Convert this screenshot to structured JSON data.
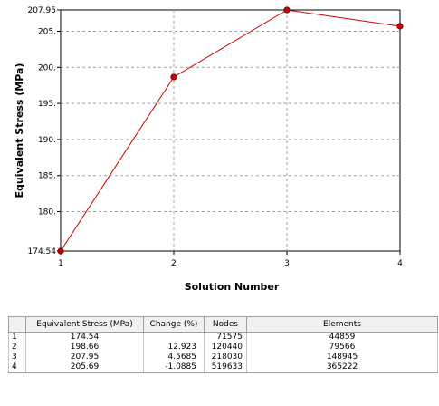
{
  "chart_data": {
    "type": "line",
    "xlabel": "Solution Number",
    "ylabel": "Equivalent Stress  (MPa)",
    "x": [
      1,
      2,
      3,
      4
    ],
    "series": [
      {
        "values": [
          174.54,
          198.66,
          207.95,
          205.69
        ],
        "color": "#cc0000"
      }
    ],
    "xlim": [
      1,
      4
    ],
    "ylim": [
      174.54,
      207.95
    ],
    "x_ticks": [
      "1",
      "2",
      "3",
      "4"
    ],
    "y_ticks": [
      {
        "value": 174.54,
        "label": "174.54"
      },
      {
        "value": 180,
        "label": "180."
      },
      {
        "value": 185,
        "label": "185."
      },
      {
        "value": 190,
        "label": "190."
      },
      {
        "value": 195,
        "label": "195."
      },
      {
        "value": 200,
        "label": "200."
      },
      {
        "value": 205,
        "label": "205."
      },
      {
        "value": 207.95,
        "label": "207.95"
      }
    ],
    "grid": true,
    "marker_color": "#cc0000"
  },
  "table": {
    "headers": [
      "Equivalent Stress (MPa)",
      "Change (%)",
      "Nodes",
      "Elements"
    ],
    "rows": [
      {
        "index": "1",
        "stress": "174.54",
        "change": "",
        "nodes": "71575",
        "elements": "44859"
      },
      {
        "index": "2",
        "stress": "198.66",
        "change": "12.923",
        "nodes": "120440",
        "elements": "79566"
      },
      {
        "index": "3",
        "stress": "207.95",
        "change": "4.5685",
        "nodes": "218030",
        "elements": "148945"
      },
      {
        "index": "4",
        "stress": "205.69",
        "change": "-1.0885",
        "nodes": "519633",
        "elements": "365222"
      }
    ]
  }
}
